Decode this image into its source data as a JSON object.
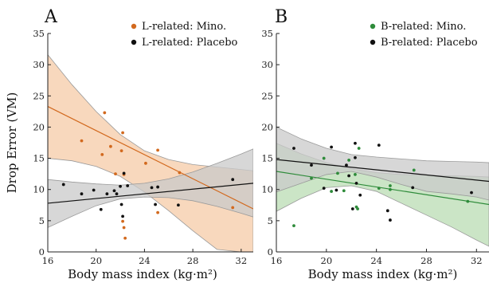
{
  "chart_data": [
    {
      "type": "scatter",
      "panel_label": "A",
      "xlabel": "Body mass index (kg·m²)",
      "ylabel": "Drop Error (VM)",
      "xlim": [
        16,
        33
      ],
      "ylim": [
        0,
        35
      ],
      "xticks": [
        16,
        20,
        24,
        28,
        32
      ],
      "yticks": [
        0,
        5,
        10,
        15,
        20,
        25,
        30,
        35
      ],
      "legend_position": "top-right",
      "series": [
        {
          "name": "L-related: Mino.",
          "color": "#d2691e",
          "band_color": "#f5cba7",
          "points": [
            [
              18.8,
              17.8
            ],
            [
              20.5,
              15.6
            ],
            [
              20.7,
              22.3
            ],
            [
              21.2,
              16.9
            ],
            [
              21.6,
              12.5
            ],
            [
              22.1,
              16.2
            ],
            [
              22.2,
              19.1
            ],
            [
              22.3,
              12.4
            ],
            [
              22.2,
              4.9
            ],
            [
              22.3,
              3.9
            ],
            [
              22.4,
              2.2
            ],
            [
              24.1,
              14.2
            ],
            [
              25.1,
              16.3
            ],
            [
              25.1,
              6.3
            ],
            [
              26.9,
              12.7
            ],
            [
              31.3,
              7.1
            ]
          ],
          "fit": {
            "x": [
              16,
              33
            ],
            "y": [
              23.3,
              6.9
            ]
          },
          "ci_upper": [
            [
              16,
              31.6
            ],
            [
              18,
              26.8
            ],
            [
              20,
              22.5
            ],
            [
              22,
              18.8
            ],
            [
              24,
              16.2
            ],
            [
              26,
              14.8
            ],
            [
              28,
              14.0
            ],
            [
              30,
              13.6
            ],
            [
              32,
              13.2
            ],
            [
              33,
              13.0
            ]
          ],
          "ci_lower": [
            [
              16,
              15.0
            ],
            [
              18,
              14.6
            ],
            [
              20,
              13.7
            ],
            [
              22,
              12.1
            ],
            [
              24,
              9.6
            ],
            [
              26,
              6.6
            ],
            [
              28,
              3.4
            ],
            [
              30,
              0.4
            ],
            [
              32,
              0.0
            ],
            [
              33,
              0.0
            ]
          ]
        },
        {
          "name": "L-related: Placebo",
          "color": "#111111",
          "band_color": "#c9c9c9",
          "points": [
            [
              17.3,
              10.8
            ],
            [
              18.8,
              9.3
            ],
            [
              19.8,
              9.9
            ],
            [
              20.4,
              6.8
            ],
            [
              20.9,
              9.3
            ],
            [
              21.5,
              9.8
            ],
            [
              21.7,
              9.3
            ],
            [
              22.0,
              10.5
            ],
            [
              22.1,
              7.6
            ],
            [
              22.2,
              5.7
            ],
            [
              22.3,
              12.6
            ],
            [
              22.6,
              10.6
            ],
            [
              24.6,
              10.3
            ],
            [
              24.9,
              7.6
            ],
            [
              25.1,
              10.4
            ],
            [
              26.8,
              7.5
            ],
            [
              31.3,
              11.6
            ]
          ],
          "fit": {
            "x": [
              16,
              33
            ],
            "y": [
              7.8,
              11.0
            ]
          },
          "ci_upper": [
            [
              16,
              11.6
            ],
            [
              18,
              11.2
            ],
            [
              20,
              10.9
            ],
            [
              22,
              10.7
            ],
            [
              24,
              11.0
            ],
            [
              26,
              11.7
            ],
            [
              28,
              12.8
            ],
            [
              30,
              14.2
            ],
            [
              32,
              15.7
            ],
            [
              33,
              16.5
            ]
          ],
          "ci_lower": [
            [
              16,
              3.9
            ],
            [
              18,
              5.7
            ],
            [
              20,
              7.4
            ],
            [
              22,
              8.5
            ],
            [
              24,
              8.8
            ],
            [
              26,
              8.7
            ],
            [
              28,
              8.2
            ],
            [
              30,
              7.3
            ],
            [
              32,
              6.2
            ],
            [
              33,
              5.6
            ]
          ]
        }
      ]
    },
    {
      "type": "scatter",
      "panel_label": "B",
      "xlabel": "Body mass index (kg·m²)",
      "ylabel": "",
      "xlim": [
        16,
        33
      ],
      "ylim": [
        0,
        35
      ],
      "xticks": [
        16,
        20,
        24,
        28,
        32
      ],
      "yticks": [
        0,
        5,
        10,
        15,
        20,
        25,
        30,
        35
      ],
      "legend_position": "top-right",
      "series": [
        {
          "name": "B-related: Mino.",
          "color": "#2e8b3a",
          "band_color": "#b9dcb3",
          "points": [
            [
              17.4,
              4.2
            ],
            [
              18.8,
              11.8
            ],
            [
              19.8,
              15.0
            ],
            [
              20.4,
              9.7
            ],
            [
              20.9,
              12.6
            ],
            [
              21.4,
              9.8
            ],
            [
              21.8,
              14.7
            ],
            [
              22.3,
              12.4
            ],
            [
              22.4,
              7.2
            ],
            [
              22.5,
              6.9
            ],
            [
              22.6,
              16.6
            ],
            [
              24.2,
              10.2
            ],
            [
              25.1,
              10.6
            ],
            [
              25.1,
              10.0
            ],
            [
              27.0,
              13.1
            ],
            [
              31.3,
              8.1
            ]
          ],
          "fit": {
            "x": [
              16,
              33
            ],
            "y": [
              12.9,
              7.6
            ]
          },
          "ci_upper": [
            [
              16,
              17.4
            ],
            [
              18,
              15.7
            ],
            [
              20,
              14.3
            ],
            [
              22,
              13.3
            ],
            [
              24,
              12.7
            ],
            [
              26,
              12.4
            ],
            [
              28,
              12.3
            ],
            [
              30,
              12.2
            ],
            [
              32,
              12.1
            ],
            [
              33,
              12.0
            ]
          ],
          "ci_lower": [
            [
              16,
              6.5
            ],
            [
              18,
              8.6
            ],
            [
              20,
              10.3
            ],
            [
              22,
              10.6
            ],
            [
              24,
              9.7
            ],
            [
              26,
              7.8
            ],
            [
              28,
              5.9
            ],
            [
              30,
              4.0
            ],
            [
              32,
              1.9
            ],
            [
              33,
              0.9
            ]
          ]
        },
        {
          "name": "B-related: Placebo",
          "color": "#111111",
          "band_color": "#c9c9c9",
          "points": [
            [
              17.4,
              16.6
            ],
            [
              18.8,
              13.9
            ],
            [
              19.8,
              10.2
            ],
            [
              20.4,
              16.8
            ],
            [
              20.8,
              9.9
            ],
            [
              21.6,
              13.9
            ],
            [
              21.8,
              12.2
            ],
            [
              22.1,
              6.9
            ],
            [
              22.3,
              17.4
            ],
            [
              22.3,
              15.1
            ],
            [
              22.4,
              11.0
            ],
            [
              22.7,
              9.1
            ],
            [
              24.2,
              17.1
            ],
            [
              24.9,
              6.6
            ],
            [
              25.1,
              5.1
            ],
            [
              26.9,
              10.3
            ],
            [
              31.6,
              9.5
            ]
          ],
          "fit": {
            "x": [
              16,
              33
            ],
            "y": [
              14.8,
              11.3
            ]
          },
          "ci_upper": [
            [
              16,
              20.0
            ],
            [
              18,
              18.1
            ],
            [
              20,
              16.6
            ],
            [
              22,
              15.6
            ],
            [
              24,
              15.2
            ],
            [
              26,
              14.9
            ],
            [
              28,
              14.6
            ],
            [
              30,
              14.5
            ],
            [
              32,
              14.4
            ],
            [
              33,
              14.3
            ]
          ],
          "ci_lower": [
            [
              16,
              9.6
            ],
            [
              18,
              11.0
            ],
            [
              20,
              12.4
            ],
            [
              22,
              12.9
            ],
            [
              24,
              12.0
            ],
            [
              26,
              10.8
            ],
            [
              28,
              9.7
            ],
            [
              30,
              9.3
            ],
            [
              32,
              8.8
            ],
            [
              33,
              8.3
            ]
          ]
        }
      ]
    }
  ]
}
